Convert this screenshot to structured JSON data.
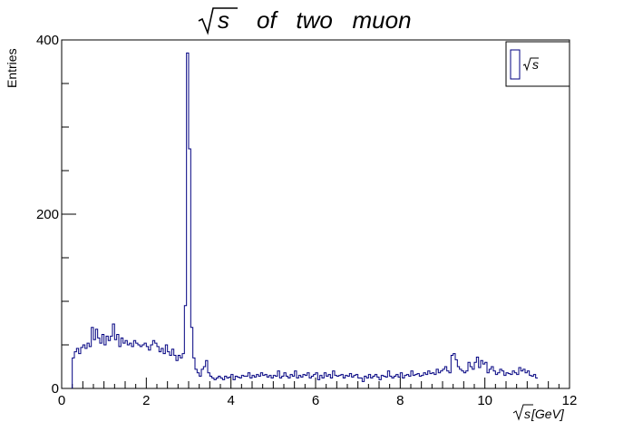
{
  "chart_data": {
    "type": "histogram",
    "title": "of   two   muon",
    "title_symbol": "s",
    "xlabel_symbol": "s",
    "xlabel": "[GeV]",
    "ylabel": "Entries",
    "legend": {
      "entry": "s",
      "position": "top-right"
    },
    "xlim": [
      0,
      12
    ],
    "ylim": [
      0,
      400
    ],
    "x_ticks": [
      0,
      2,
      4,
      6,
      8,
      10,
      12
    ],
    "y_ticks": [
      0,
      200,
      400
    ],
    "line_color": "#000080",
    "bin_width": 0.05,
    "bin_start": 0.25,
    "values": [
      35,
      42,
      46,
      40,
      47,
      50,
      46,
      52,
      48,
      70,
      56,
      68,
      58,
      52,
      62,
      50,
      60,
      55,
      60,
      74,
      56,
      62,
      48,
      58,
      52,
      55,
      50,
      52,
      48,
      55,
      52,
      50,
      48,
      50,
      52,
      48,
      44,
      50,
      55,
      52,
      48,
      42,
      46,
      40,
      50,
      42,
      38,
      45,
      38,
      32,
      38,
      35,
      40,
      95,
      385,
      275,
      70,
      35,
      22,
      18,
      14,
      22,
      25,
      32,
      18,
      14,
      12,
      10,
      12,
      14,
      12,
      10,
      14,
      12,
      13,
      16,
      10,
      14,
      13,
      12,
      15,
      14,
      14,
      18,
      12,
      15,
      13,
      16,
      14,
      18,
      15,
      16,
      13,
      15,
      12,
      15,
      14,
      20,
      12,
      14,
      18,
      14,
      12,
      16,
      14,
      20,
      12,
      15,
      13,
      16,
      15,
      18,
      12,
      14,
      16,
      18,
      10,
      15,
      12,
      18,
      14,
      16,
      12,
      20,
      15,
      14,
      15,
      16,
      12,
      15,
      14,
      17,
      13,
      15,
      16,
      12,
      12,
      8,
      14,
      12,
      16,
      12,
      14,
      16,
      13,
      10,
      15,
      14,
      13,
      20,
      14,
      12,
      14,
      16,
      13,
      18,
      12,
      15,
      16,
      14,
      20,
      15,
      16,
      17,
      14,
      15,
      18,
      16,
      20,
      17,
      18,
      16,
      22,
      18,
      20,
      22,
      25,
      20,
      18,
      38,
      40,
      33,
      25,
      22,
      20,
      18,
      20,
      30,
      25,
      22,
      30,
      36,
      24,
      32,
      28,
      30,
      18,
      22,
      25,
      20,
      16,
      18,
      22,
      20,
      15,
      18,
      17,
      16,
      20,
      18,
      16,
      24,
      20,
      22,
      18,
      20,
      15,
      14,
      16,
      12
    ]
  }
}
